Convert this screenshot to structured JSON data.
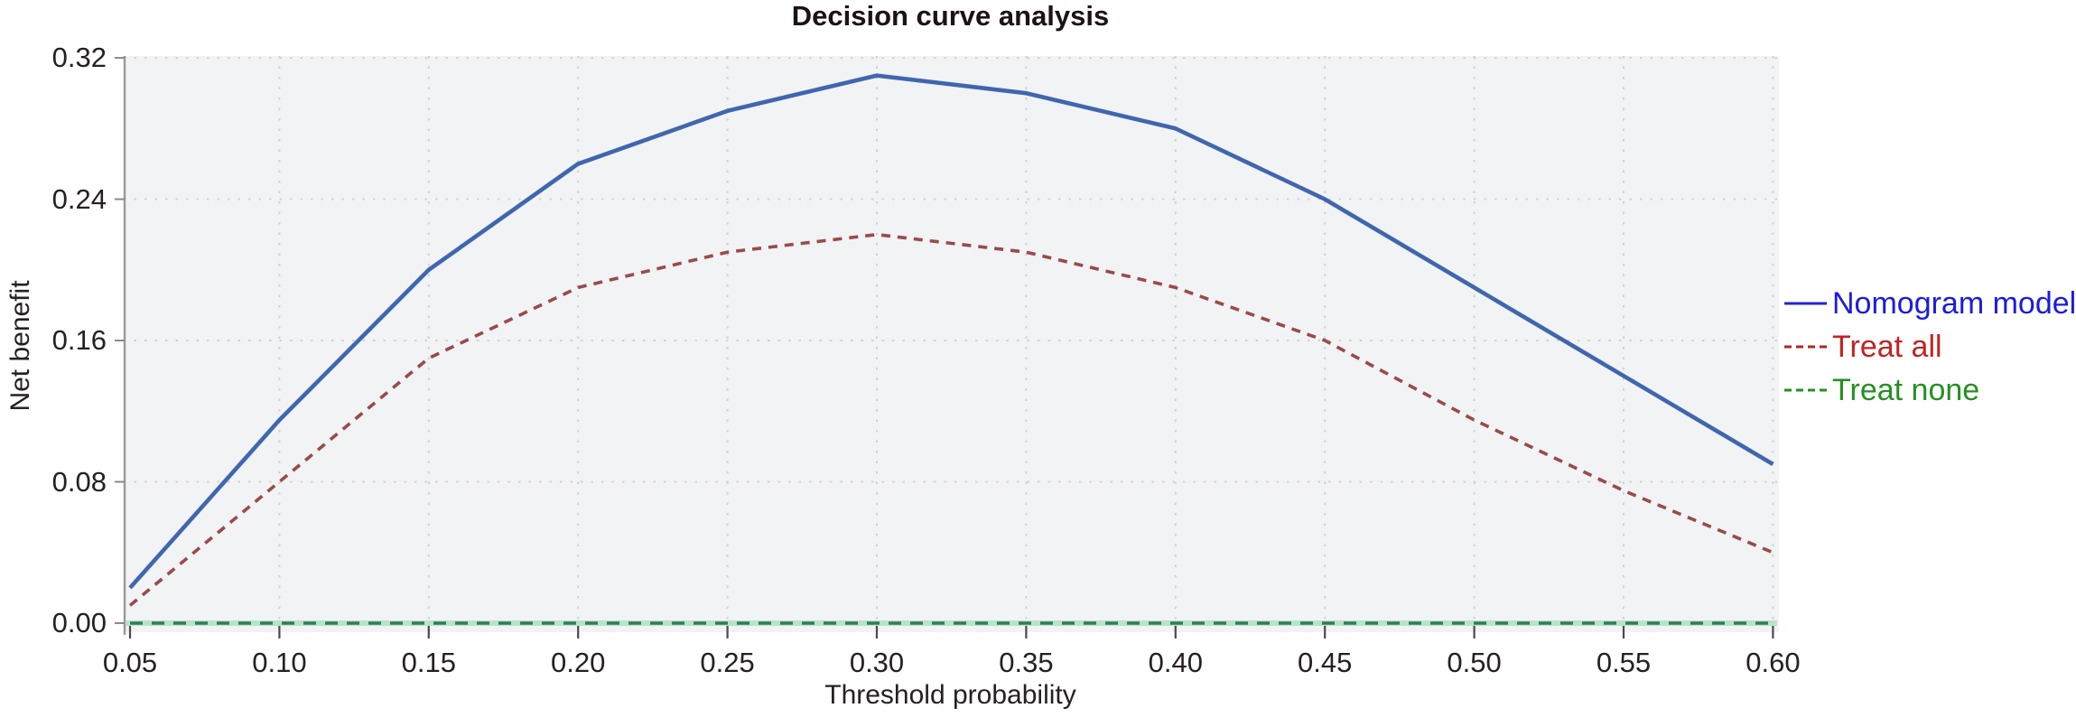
{
  "title": "Decision curve analysis",
  "axes": {
    "x_label": "Threshold probability",
    "y_label": "Net benefit",
    "x_tick_labels": [
      "0.05",
      "0.10",
      "0.15",
      "0.20",
      "0.25",
      "0.30",
      "0.35",
      "0.40",
      "0.45",
      "0.50",
      "0.55",
      "0.60"
    ],
    "y_tick_labels": [
      "0.00",
      "0.08",
      "0.16",
      "0.24",
      "0.32"
    ],
    "y_tick_values": [
      0.0,
      0.08,
      0.16,
      0.24,
      0.32
    ]
  },
  "legend": [
    {
      "label": "Nomogram model",
      "text_color": "#1b1be0",
      "line_color": "#2323d6",
      "line_style": "solid"
    },
    {
      "label": "Treat all",
      "text_color": "#c32222",
      "line_color": "#b22424",
      "line_style": "dashed"
    },
    {
      "label": "Treat none",
      "text_color": "#259022",
      "line_color": "#259022",
      "line_style": "dashed"
    }
  ],
  "chart_data": {
    "type": "line",
    "title": "Decision curve analysis",
    "xlabel": "Threshold probability",
    "ylabel": "Net benefit",
    "x": [
      0.05,
      0.1,
      0.15,
      0.2,
      0.25,
      0.3,
      0.35,
      0.4,
      0.45,
      0.5,
      0.55,
      0.6
    ],
    "series": [
      {
        "name": "Nomogram model",
        "style": "solid",
        "color": "#4066ae",
        "values": [
          0.02,
          0.115,
          0.2,
          0.26,
          0.29,
          0.31,
          0.3,
          0.28,
          0.24,
          0.19,
          0.14,
          0.09
        ]
      },
      {
        "name": "Treat all",
        "style": "dashed",
        "color": "#9a4a4a",
        "values": [
          0.01,
          0.08,
          0.15,
          0.19,
          0.21,
          0.22,
          0.21,
          0.19,
          0.16,
          0.115,
          0.075,
          0.04
        ]
      },
      {
        "name": "Treat none",
        "style": "dashed",
        "color": "#35795b",
        "values": [
          0,
          0,
          0,
          0,
          0,
          0,
          0,
          0,
          0,
          0,
          0,
          0
        ]
      }
    ],
    "xlim": [
      0.05,
      0.6
    ],
    "ylim": [
      0.0,
      0.32
    ],
    "grid": true,
    "legend_position": "right"
  },
  "colors": {
    "plot_background": "#f1f3f5",
    "outer_background": "#ffffff",
    "h_gridline": "#d9cfcf",
    "v_gridline": "#ccd3d3",
    "axis_line": "#9b9b9b",
    "x_tick_mark": "#4a4a4a",
    "y_tick_mark": "#8a8a8a",
    "treat_none_glow": "#b7e4c7",
    "title_text": "#1d1216",
    "tick_text": "#262022"
  }
}
